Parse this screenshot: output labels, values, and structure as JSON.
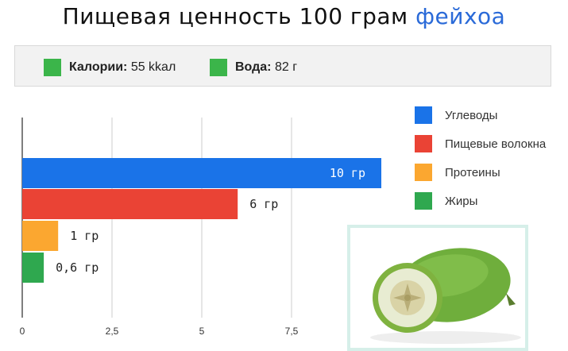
{
  "title": {
    "main": "Пищевая ценность 100 грам",
    "accent": "фейхоа"
  },
  "stats": [
    {
      "label": "Калории:",
      "value": "55 kkал",
      "color": "#3bb54a"
    },
    {
      "label": "Вода:",
      "value": "82 г",
      "color": "#3bb54a"
    }
  ],
  "chart_data": {
    "type": "bar",
    "orientation": "horizontal",
    "categories": [
      "Углеводы",
      "Пищевые волокна",
      "Протеины",
      "Жиры"
    ],
    "values": [
      10,
      6,
      1,
      0.6
    ],
    "data_labels": [
      "10 гр",
      "6 гр",
      "1 гр",
      "0,6 гр"
    ],
    "colors": [
      "#1a73e8",
      "#ea4335",
      "#fba730",
      "#2fa84f"
    ],
    "xlim": [
      0,
      9
    ],
    "xticks": [
      0,
      2.5,
      5,
      7.5
    ],
    "xtick_labels": [
      "0",
      "2,5",
      "5",
      "7,5"
    ],
    "grid": true,
    "legend_position": "right",
    "title": "",
    "xlabel": "",
    "ylabel": ""
  }
}
